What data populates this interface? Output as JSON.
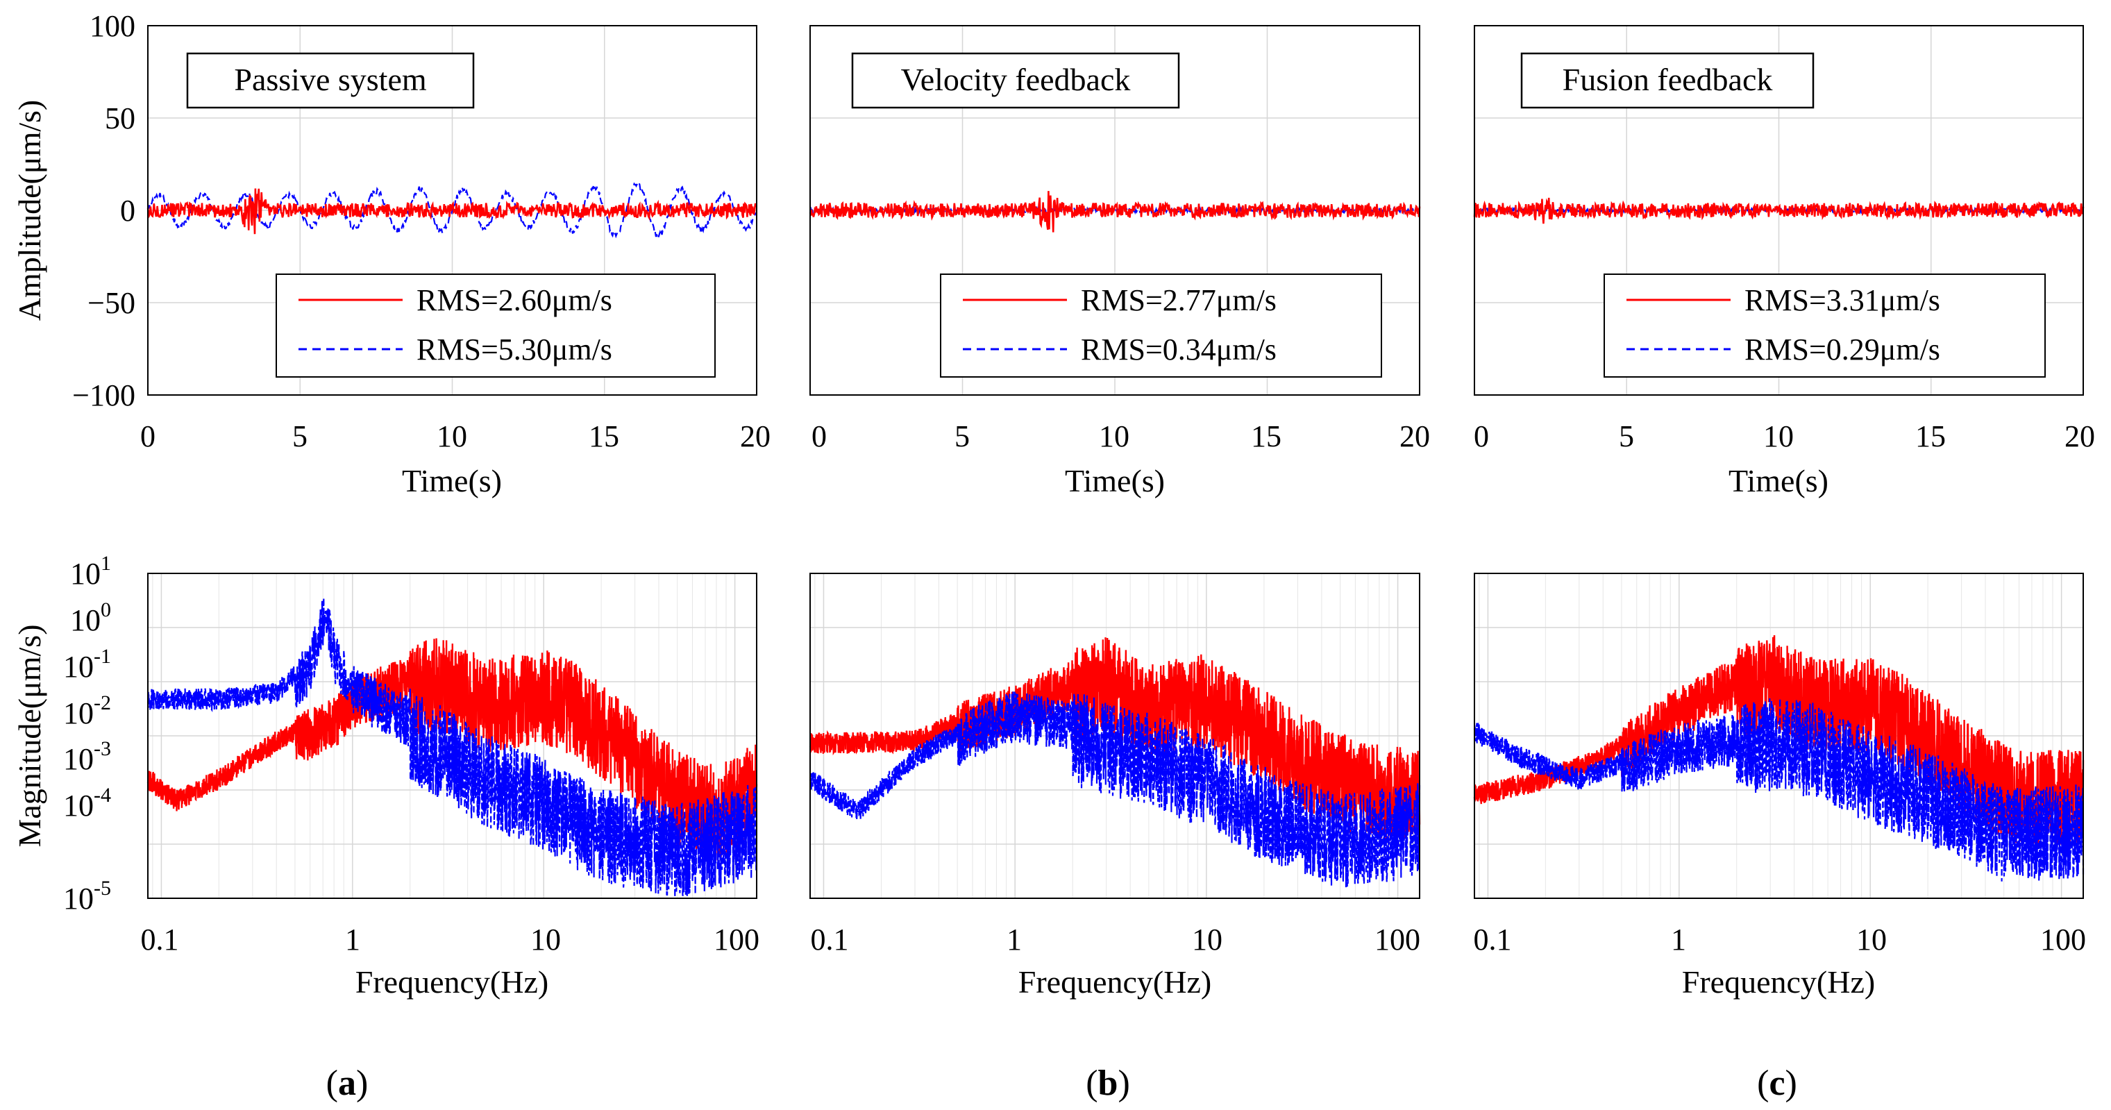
{
  "panels": [
    {
      "id": "a",
      "caption": "(a)",
      "caption_letter": "a",
      "title": "Passive system",
      "time": {
        "xlabel": "Time(s)",
        "ylabel": "Amplitude(μm/s)",
        "xlim": [
          0,
          20
        ],
        "ylim": [
          -100,
          100
        ],
        "xticks": [
          "0",
          "5",
          "10",
          "15",
          "20"
        ],
        "yticks": [
          "100",
          "50",
          "0",
          "−50",
          "−100"
        ],
        "legend": [
          {
            "label": "RMS=2.60μm/s",
            "color": "#ff0000",
            "style": "solid"
          },
          {
            "label": "RMS=5.30μm/s",
            "color": "#0000ff",
            "style": "dashed"
          }
        ]
      },
      "freq": {
        "xlabel": "Frequency(Hz)",
        "ylabel": "Magnitude(μm/s)",
        "xticks": [
          "0.1",
          "1",
          "10",
          "100"
        ]
      }
    },
    {
      "id": "b",
      "caption": "(b)",
      "caption_letter": "b",
      "title": "Velocity feedback",
      "time": {
        "xlabel": "Time(s)",
        "xlim": [
          0,
          20
        ],
        "ylim": [
          -100,
          100
        ],
        "xticks": [
          "0",
          "5",
          "10",
          "15",
          "20"
        ],
        "legend": [
          {
            "label": "RMS=2.77μm/s",
            "color": "#ff0000",
            "style": "solid"
          },
          {
            "label": "RMS=0.34μm/s",
            "color": "#0000ff",
            "style": "dashed"
          }
        ]
      },
      "freq": {
        "xlabel": "Frequency(Hz)",
        "xticks": [
          "0.1",
          "1",
          "10",
          "100"
        ]
      }
    },
    {
      "id": "c",
      "caption": "(c)",
      "caption_letter": "c",
      "title": "Fusion feedback",
      "time": {
        "xlabel": "Time(s)",
        "xlim": [
          0,
          20
        ],
        "ylim": [
          -100,
          100
        ],
        "xticks": [
          "0",
          "5",
          "10",
          "15",
          "20"
        ],
        "legend": [
          {
            "label": "RMS=3.31μm/s",
            "color": "#ff0000",
            "style": "solid"
          },
          {
            "label": "RMS=0.29μm/s",
            "color": "#0000ff",
            "style": "dashed"
          }
        ]
      },
      "freq": {
        "xlabel": "Frequency(Hz)",
        "xticks": [
          "0.1",
          "1",
          "10",
          "100"
        ]
      }
    }
  ],
  "freq_yticks": [
    {
      "base": "10",
      "exp": "1"
    },
    {
      "base": "10",
      "exp": "0"
    },
    {
      "base": "10",
      "exp": "-1"
    },
    {
      "base": "10",
      "exp": "-2"
    },
    {
      "base": "10",
      "exp": "-3"
    },
    {
      "base": "10",
      "exp": "-4"
    },
    {
      "base": "10",
      "exp": "-5"
    }
  ],
  "chart_data": [
    {
      "type": "line",
      "panel": "a-time",
      "title": "Passive system",
      "xlabel": "Time(s)",
      "ylabel": "Amplitude(μm/s)",
      "xlim": [
        0,
        20
      ],
      "ylim": [
        -100,
        100
      ],
      "series": [
        {
          "name": "RMS=2.60μm/s",
          "color": "#ff0000",
          "style": "solid",
          "baseline": 0,
          "noise_amp": 4,
          "burst_t": 3.5,
          "burst_amp": 14
        },
        {
          "name": "RMS=5.30μm/s",
          "color": "#0000ff",
          "style": "dashed",
          "baseline": 0,
          "sine_amp": [
            8,
            16
          ],
          "sine_hz": 0.7
        }
      ]
    },
    {
      "type": "line",
      "panel": "b-time",
      "title": "Velocity feedback",
      "xlabel": "Time(s)",
      "xlim": [
        0,
        20
      ],
      "ylim": [
        -100,
        100
      ],
      "series": [
        {
          "name": "RMS=2.77μm/s",
          "color": "#ff0000",
          "style": "solid",
          "baseline": 0,
          "noise_amp": 4,
          "burst_t": 7.8,
          "burst_amp": 12
        },
        {
          "name": "RMS=0.34μm/s",
          "color": "#0000ff",
          "style": "dashed",
          "baseline": 0,
          "noise_amp": 1
        }
      ]
    },
    {
      "type": "line",
      "panel": "c-time",
      "title": "Fusion feedback",
      "xlabel": "Time(s)",
      "xlim": [
        0,
        20
      ],
      "ylim": [
        -100,
        100
      ],
      "series": [
        {
          "name": "RMS=3.31μm/s",
          "color": "#ff0000",
          "style": "solid",
          "baseline": 0,
          "noise_amp": 4,
          "burst_t": 2.3,
          "burst_amp": 8
        },
        {
          "name": "RMS=0.29μm/s",
          "color": "#0000ff",
          "style": "dashed",
          "baseline": 0,
          "noise_amp": 1
        }
      ]
    },
    {
      "type": "line",
      "panel": "a-freq",
      "xlabel": "Frequency(Hz)",
      "ylabel": "Magnitude(μm/s)",
      "xscale": "log",
      "yscale": "log",
      "xlim": [
        0.085,
        130
      ],
      "ylim": [
        1e-05,
        10
      ],
      "series": [
        {
          "name": "red",
          "color": "#ff0000",
          "style": "solid",
          "envelope": [
            [
              0.085,
              0.002
            ],
            [
              0.12,
              0.0008
            ],
            [
              0.2,
              0.002
            ],
            [
              0.4,
              0.01
            ],
            [
              0.8,
              0.03
            ],
            [
              1.1,
              0.08
            ],
            [
              1.5,
              0.12
            ],
            [
              2.8,
              0.25
            ],
            [
              5,
              0.1
            ],
            [
              10,
              0.15
            ],
            [
              15,
              0.08
            ],
            [
              30,
              0.01
            ],
            [
              50,
              0.002
            ],
            [
              80,
              0.001
            ],
            [
              130,
              0.003
            ]
          ]
        },
        {
          "name": "blue",
          "color": "#0000ff",
          "style": "dashed",
          "envelope": [
            [
              0.085,
              0.06
            ],
            [
              0.2,
              0.06
            ],
            [
              0.4,
              0.08
            ],
            [
              0.6,
              0.3
            ],
            [
              0.72,
              3.5
            ],
            [
              0.8,
              0.5
            ],
            [
              1,
              0.12
            ],
            [
              2,
              0.03
            ],
            [
              5,
              0.004
            ],
            [
              10,
              0.0015
            ],
            [
              20,
              0.0004
            ],
            [
              50,
              0.0002
            ],
            [
              130,
              0.0005
            ]
          ]
        }
      ]
    },
    {
      "type": "line",
      "panel": "b-freq",
      "xlabel": "Frequency(Hz)",
      "xscale": "log",
      "yscale": "log",
      "xlim": [
        0.085,
        130
      ],
      "ylim": [
        1e-05,
        10
      ],
      "series": [
        {
          "name": "red",
          "color": "#ff0000",
          "style": "solid",
          "envelope": [
            [
              0.085,
              0.009
            ],
            [
              0.3,
              0.01
            ],
            [
              0.6,
              0.03
            ],
            [
              1,
              0.05
            ],
            [
              1.5,
              0.1
            ],
            [
              3,
              0.25
            ],
            [
              5,
              0.08
            ],
            [
              10,
              0.12
            ],
            [
              15,
              0.05
            ],
            [
              30,
              0.01
            ],
            [
              60,
              0.003
            ],
            [
              130,
              0.002
            ]
          ]
        },
        {
          "name": "blue",
          "color": "#0000ff",
          "style": "dashed",
          "envelope": [
            [
              0.085,
              0.002
            ],
            [
              0.15,
              0.0005
            ],
            [
              0.3,
              0.005
            ],
            [
              0.6,
              0.02
            ],
            [
              1,
              0.04
            ],
            [
              2,
              0.025
            ],
            [
              5,
              0.01
            ],
            [
              10,
              0.004
            ],
            [
              20,
              0.001
            ],
            [
              50,
              0.0003
            ],
            [
              130,
              0.0005
            ]
          ]
        }
      ]
    },
    {
      "type": "line",
      "panel": "c-freq",
      "xlabel": "Frequency(Hz)",
      "xscale": "log",
      "yscale": "log",
      "xlim": [
        0.085,
        130
      ],
      "ylim": [
        1e-05,
        10
      ],
      "series": [
        {
          "name": "red",
          "color": "#ff0000",
          "style": "solid",
          "envelope": [
            [
              0.085,
              0.001
            ],
            [
              0.2,
              0.002
            ],
            [
              0.4,
              0.005
            ],
            [
              0.8,
              0.03
            ],
            [
              1.5,
              0.1
            ],
            [
              3,
              0.3
            ],
            [
              5,
              0.1
            ],
            [
              10,
              0.1
            ],
            [
              15,
              0.05
            ],
            [
              30,
              0.008
            ],
            [
              60,
              0.002
            ],
            [
              130,
              0.002
            ]
          ]
        },
        {
          "name": "blue",
          "color": "#0000ff",
          "style": "dashed",
          "envelope": [
            [
              0.085,
              0.015
            ],
            [
              0.15,
              0.005
            ],
            [
              0.3,
              0.002
            ],
            [
              0.5,
              0.004
            ],
            [
              1,
              0.01
            ],
            [
              2,
              0.015
            ],
            [
              3,
              0.02
            ],
            [
              5,
              0.015
            ],
            [
              10,
              0.005
            ],
            [
              20,
              0.002
            ],
            [
              50,
              0.0004
            ],
            [
              130,
              0.0005
            ]
          ]
        }
      ]
    }
  ]
}
